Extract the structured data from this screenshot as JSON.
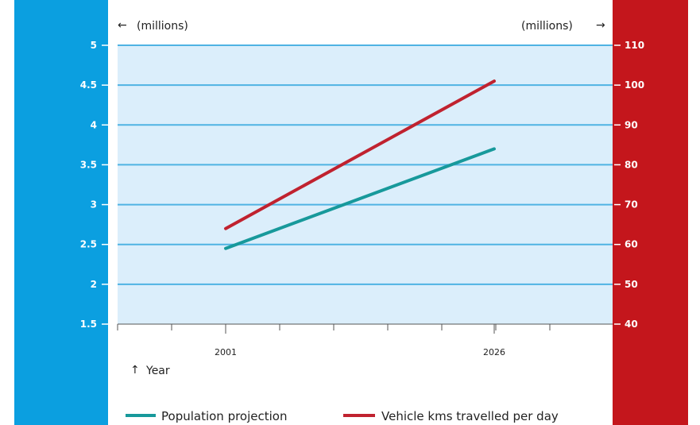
{
  "colors": {
    "left_band": "#0b9fe0",
    "right_band": "#c4161c",
    "plot_bg": "#dbeefb",
    "grid": "#4fb3e3",
    "population": "#17999b",
    "vehicle": "#c0222f"
  },
  "chart_data": {
    "type": "line",
    "left_unit": "(millions)",
    "right_unit": "(millions)",
    "arrow_left": "←",
    "arrow_right": "→",
    "year_arrow": "↑",
    "xlabel": "Year",
    "x_ticks": [
      "2001",
      "2026"
    ],
    "left_axis": {
      "ylim": [
        1.5,
        5
      ],
      "ticks": [
        "5",
        "4.5",
        "4",
        "3.5",
        "3",
        "2.5",
        "2",
        "1.5"
      ],
      "tick_values": [
        5,
        4.5,
        4,
        3.5,
        3,
        2.5,
        2,
        1.5
      ]
    },
    "right_axis": {
      "ylim": [
        40,
        110
      ],
      "ticks": [
        "110",
        "100",
        "90",
        "80",
        "70",
        "60",
        "50",
        "40"
      ],
      "tick_values": [
        110,
        100,
        90,
        80,
        70,
        60,
        50,
        40
      ]
    },
    "grid": true,
    "legend_position": "bottom",
    "series": [
      {
        "name": "Population projection",
        "axis": "left",
        "x": [
          "2001",
          "2026"
        ],
        "values": [
          2.45,
          3.7
        ],
        "color_key": "population"
      },
      {
        "name": "Vehicle kms travelled per day",
        "axis": "right",
        "x": [
          "2001",
          "2026"
        ],
        "values": [
          64,
          101
        ],
        "color_key": "vehicle"
      }
    ]
  }
}
